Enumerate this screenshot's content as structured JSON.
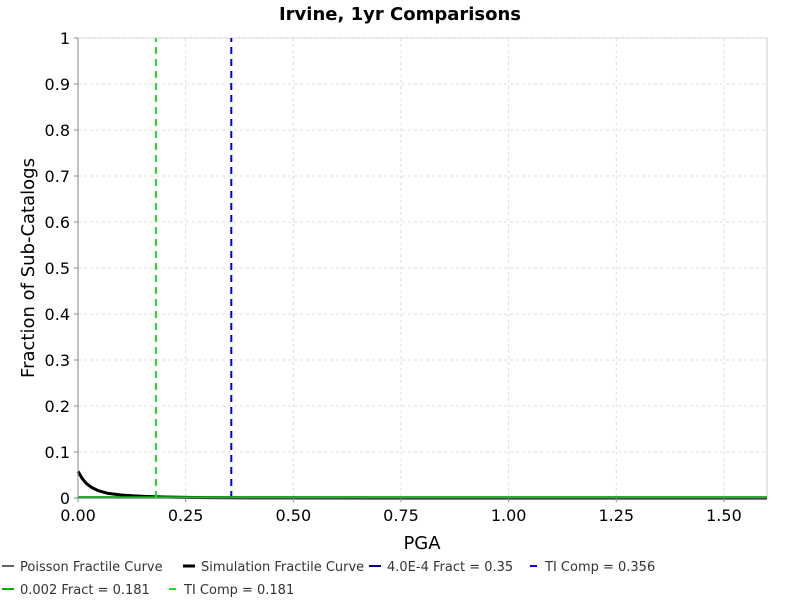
{
  "chart_data": {
    "type": "line",
    "title": "Irvine, 1yr Comparisons",
    "xlabel": "PGA",
    "ylabel": "Fraction of Sub-Catalogs",
    "xlim": [
      0,
      1.6
    ],
    "ylim": [
      0,
      1
    ],
    "x_ticks": [
      "0.00",
      "0.25",
      "0.50",
      "0.75",
      "1.00",
      "1.25",
      "1.50"
    ],
    "y_ticks": [
      "0",
      "0.1",
      "0.2",
      "0.3",
      "0.4",
      "0.5",
      "0.6",
      "0.7",
      "0.8",
      "0.9",
      "1"
    ],
    "grid": true,
    "legend_position": "bottom",
    "series": [
      {
        "name": "Poisson Fractile Curve",
        "color": "#666666",
        "style": "solid",
        "x": [
          0.0,
          0.02,
          0.05,
          0.1,
          0.2,
          0.3,
          0.4,
          0.6,
          0.8,
          1.0,
          1.2,
          1.4,
          1.6
        ],
        "y": [
          0.0015,
          0.0012,
          0.001,
          0.0008,
          0.0005,
          0.0003,
          0.0002,
          0.0001,
          0.0,
          0.0,
          0.0,
          0.0,
          0.0
        ]
      },
      {
        "name": "Simulation Fractile Curve",
        "color": "#000000",
        "style": "solid",
        "x": [
          0.0,
          0.005,
          0.01,
          0.02,
          0.03,
          0.04,
          0.05,
          0.07,
          0.1,
          0.13,
          0.16,
          0.2,
          0.25,
          0.3,
          0.35,
          0.4,
          0.5,
          0.7,
          1.0,
          1.3,
          1.6
        ],
        "y": [
          0.058,
          0.05,
          0.042,
          0.031,
          0.024,
          0.019,
          0.015,
          0.01,
          0.0065,
          0.0045,
          0.0032,
          0.0022,
          0.0014,
          0.0009,
          0.0006,
          0.0004,
          0.0002,
          0.0001,
          0.0,
          0.0,
          0.0
        ]
      },
      {
        "name": "4.0E-4 Fract = 0.35",
        "color": "#00008b",
        "style": "solid",
        "x": [
          0.0,
          1.6
        ],
        "y": [
          0.0004,
          0.0004
        ]
      },
      {
        "name": "TI Comp = 0.356",
        "color": "#0000cc",
        "style": "dashed",
        "x": [
          0.356,
          0.356
        ],
        "y": [
          0,
          1
        ]
      },
      {
        "name": "0.002 Fract = 0.181",
        "color": "#00aa00",
        "style": "solid",
        "x": [
          0.0,
          1.6
        ],
        "y": [
          0.002,
          0.002
        ]
      },
      {
        "name": "TI Comp = 0.181",
        "color": "#22dd22",
        "style": "dashed",
        "x": [
          0.181,
          0.181
        ],
        "y": [
          0,
          1
        ]
      }
    ]
  }
}
